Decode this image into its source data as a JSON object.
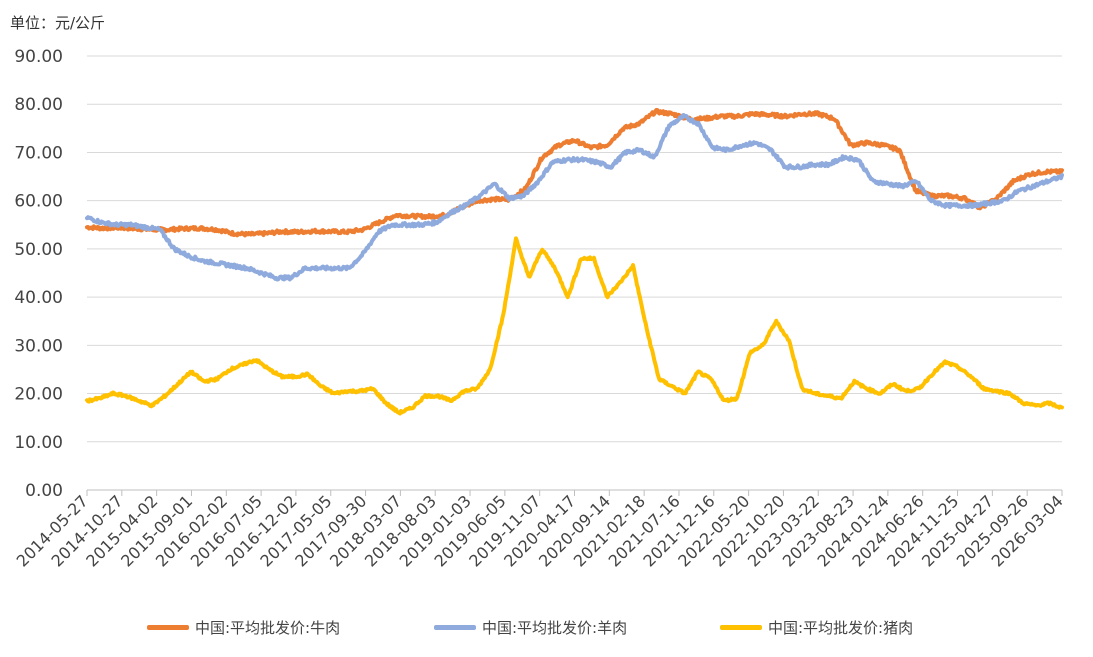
{
  "unit_label": "单位：元/公斤",
  "chart_data": {
    "type": "line",
    "ylim": [
      0,
      90
    ],
    "yticks": [
      "0.00",
      "10.00",
      "20.00",
      "30.00",
      "40.00",
      "50.00",
      "60.00",
      "70.00",
      "80.00",
      "90.00"
    ],
    "x_tick_labels": [
      "2014-05-27",
      "2014-10-27",
      "2015-04-02",
      "2015-09-01",
      "2016-02-02",
      "2016-07-05",
      "2016-12-02",
      "2017-05-05",
      "2017-09-30",
      "2018-03-07",
      "2018-08-03",
      "2019-01-03",
      "2019-06-05",
      "2019-11-07",
      "2020-04-17",
      "2020-09-14",
      "2021-02-18",
      "2021-07-16",
      "2021-12-16",
      "2022-05-20",
      "2022-10-20",
      "2023-03-22",
      "2023-08-23",
      "2024-01-24",
      "2024-06-26",
      "2024-11-25",
      "2025-04-27",
      "2025-09-26",
      "2026-03-04"
    ],
    "grid": true,
    "legend_position": "bottom",
    "series": [
      {
        "name": "中国:平均批发价:牛肉",
        "color": "#ED7D31",
        "values": [
          54.5,
          54.3,
          54.4,
          54.2,
          54.0,
          54.0,
          54.2,
          54.3,
          54.0,
          53.2,
          53.0,
          53.2,
          53.6,
          53.5,
          53.7,
          53.6,
          53.5,
          54.0,
          55.5,
          57.0,
          56.8,
          56.7,
          57.0,
          58.5,
          60.0,
          60.3,
          60.2,
          62.5,
          69.0,
          71.5,
          72.5,
          71.0,
          71.5,
          75.0,
          76.0,
          78.5,
          78.0,
          77.0,
          77.0,
          77.5,
          77.5,
          78.0,
          77.8,
          77.5,
          78.0,
          78.0,
          77.0,
          71.5,
          72.0,
          71.5,
          70.5,
          62.0,
          61.0,
          61.0,
          60.5,
          58.5,
          60.5,
          64.0,
          65.5,
          66.0,
          66.0
        ]
      },
      {
        "name": "中国:平均批发价:羊肉",
        "color": "#8FAADC",
        "values": [
          56.5,
          55.5,
          55.0,
          55.0,
          54.5,
          54.0,
          50.0,
          48.5,
          47.5,
          47.0,
          46.5,
          46.0,
          45.0,
          44.0,
          44.0,
          46.0,
          46.0,
          46.0,
          46.0,
          49.0,
          53.5,
          55.0,
          55.0,
          55.0,
          55.5,
          57.5,
          59.0,
          61.0,
          63.5,
          60.5,
          61.0,
          64.0,
          68.0,
          68.5,
          68.5,
          68.0,
          67.0,
          70.0,
          70.5,
          69.0,
          75.5,
          77.5,
          76.0,
          71.0,
          70.5,
          71.5,
          72.0,
          70.5,
          67.0,
          67.0,
          67.5,
          67.5,
          69.0,
          68.5,
          64.0,
          63.5,
          63.0,
          64.0,
          60.0,
          59.0,
          59.0,
          59.0,
          59.5,
          60.0,
          62.0,
          63.0,
          64.0,
          65.0
        ]
      },
      {
        "name": "中国:平均批发价:猪肉",
        "color": "#FFC000",
        "values": [
          18.5,
          19.0,
          20.0,
          19.5,
          18.5,
          17.5,
          19.5,
          22.0,
          24.5,
          22.5,
          23.0,
          25.0,
          26.0,
          27.0,
          25.0,
          23.5,
          23.5,
          24.0,
          21.5,
          20.0,
          20.5,
          20.5,
          21.0,
          18.0,
          16.0,
          17.0,
          19.5,
          19.5,
          18.5,
          20.5,
          21.0,
          25.0,
          36.0,
          52.0,
          44.0,
          50.0,
          46.0,
          40.0,
          48.0,
          48.0,
          40.0,
          43.0,
          46.5,
          34.0,
          23.0,
          21.5,
          20.0,
          24.5,
          23.0,
          18.5,
          19.0,
          28.5,
          30.0,
          35.0,
          31.0,
          21.0,
          20.0,
          19.5,
          19.0,
          22.5,
          21.0,
          20.0,
          22.0,
          20.5,
          21.0,
          24.0,
          26.5,
          25.5,
          23.5,
          21.0,
          20.5,
          20.0,
          18.0,
          17.5,
          18.0,
          17.0
        ]
      }
    ]
  }
}
